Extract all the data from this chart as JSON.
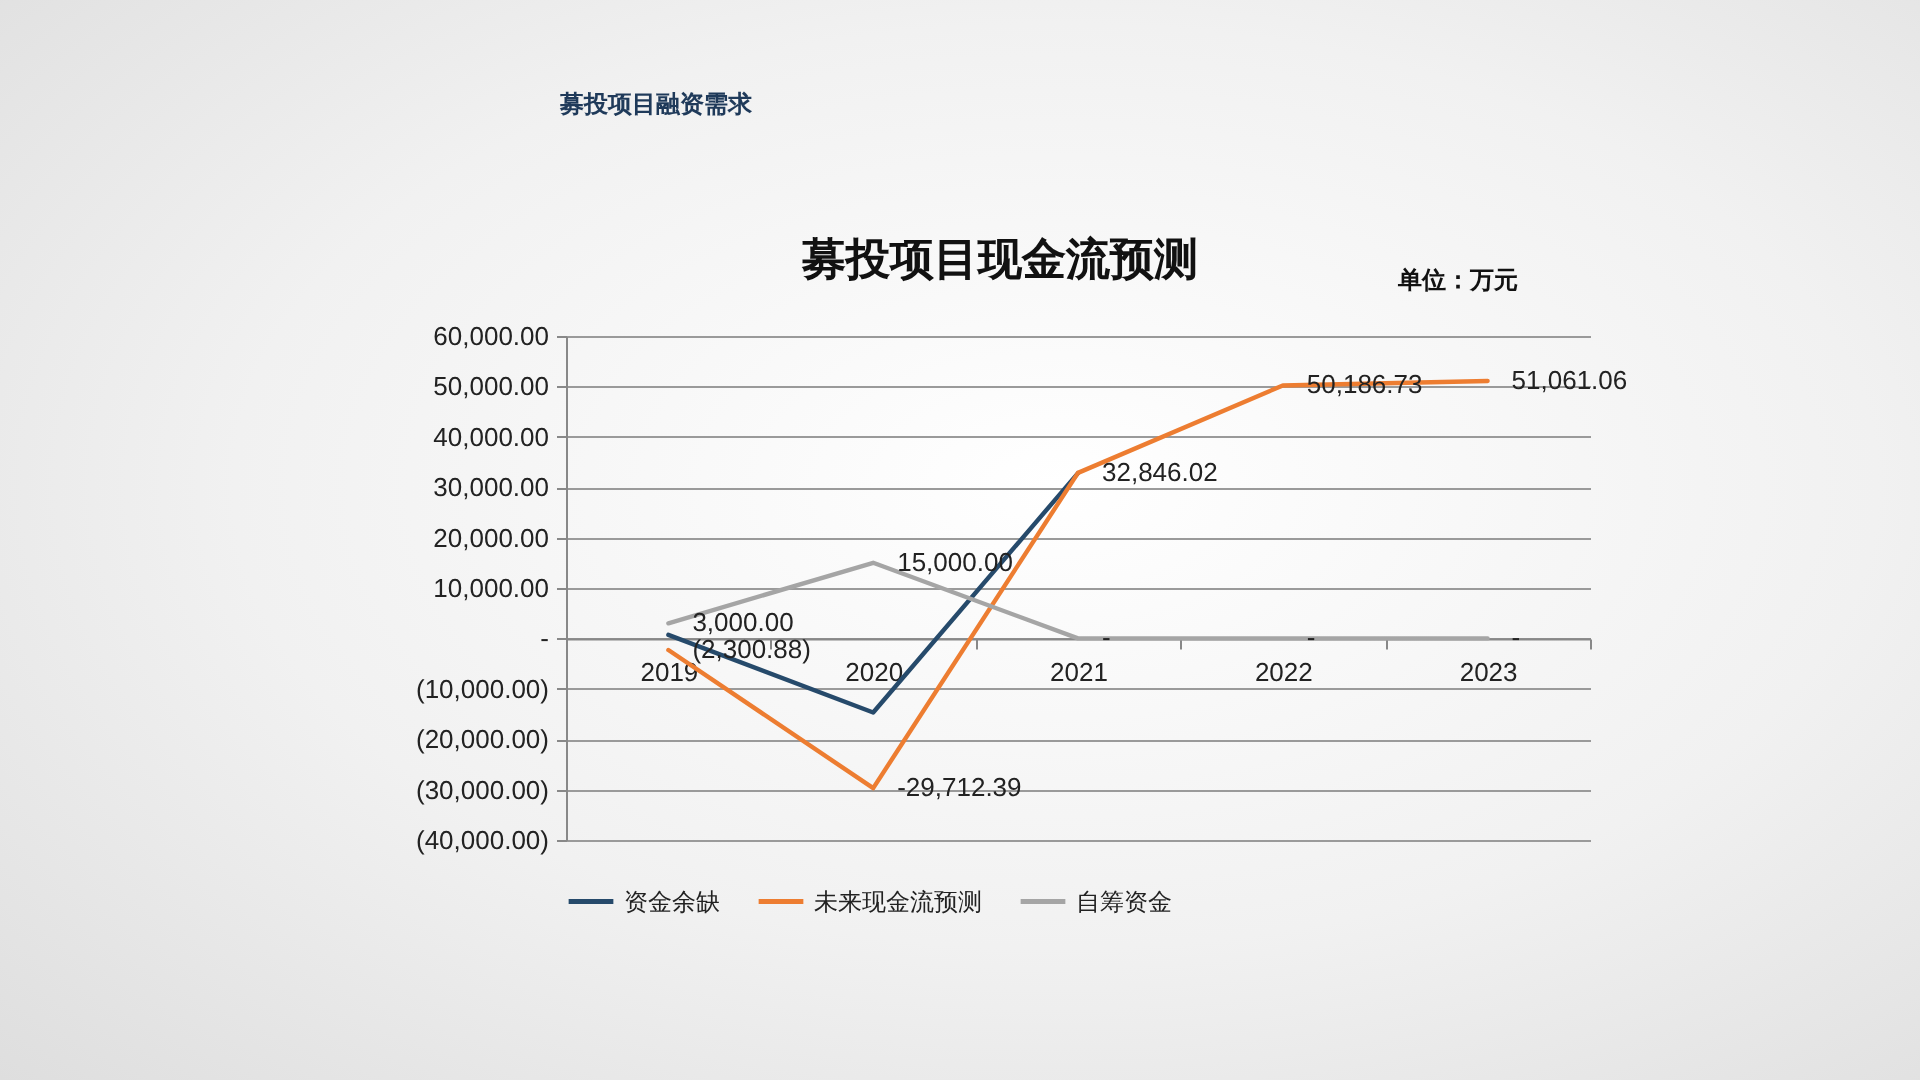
{
  "chart_data": {
    "type": "line",
    "title": "募投项目现金流预测",
    "annotations": [
      "募投项目融资需求",
      "单位：万元"
    ],
    "categories": [
      "2019",
      "2020",
      "2021",
      "2022",
      "2023"
    ],
    "series": [
      {
        "name": "资金余缺",
        "color": "#264a6b",
        "values": [
          700,
          -14700,
          32800,
          null,
          null
        ]
      },
      {
        "name": "未来现金流预测",
        "color": "#ed7d31",
        "values": [
          -2300.88,
          -29712.39,
          32846.02,
          50186.73,
          51061.06
        ],
        "value_labels": [
          "(2,300.88)",
          "-29,712.39",
          "32,846.02",
          "50,186.73",
          "51,061.06"
        ]
      },
      {
        "name": "自筹资金",
        "color": "#a5a5a5",
        "values": [
          3000,
          15000,
          0,
          0,
          0
        ],
        "value_labels": [
          "3,000.00",
          "15,000.00",
          "-",
          "-",
          "-"
        ]
      }
    ],
    "ylim": [
      -40000,
      60000
    ],
    "yticks": [
      {
        "value": -40000,
        "label": "(40,000.00)"
      },
      {
        "value": -30000,
        "label": "(30,000.00)"
      },
      {
        "value": -20000,
        "label": "(20,000.00)"
      },
      {
        "value": -10000,
        "label": "(10,000.00)"
      },
      {
        "value": 0,
        "label": "-"
      },
      {
        "value": 10000,
        "label": "10,000.00"
      },
      {
        "value": 20000,
        "label": "20,000.00"
      },
      {
        "value": 30000,
        "label": "30,000.00"
      },
      {
        "value": 40000,
        "label": "40,000.00"
      },
      {
        "value": 50000,
        "label": "50,000.00"
      },
      {
        "value": 60000,
        "label": "60,000.00"
      }
    ],
    "grid": "y",
    "legend": "bottom"
  }
}
